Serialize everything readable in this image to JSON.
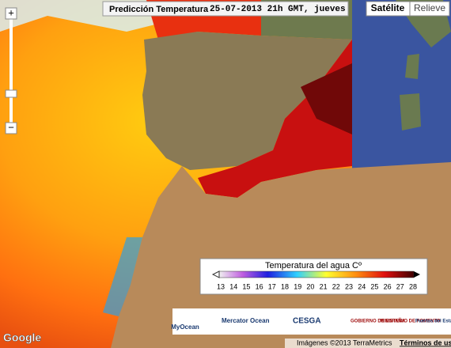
{
  "header": {
    "title": "Predicción Temperatura",
    "date": "25-07-2013 21h GMT, jueves"
  },
  "map_type": {
    "buttons": [
      "Satélite",
      "Relieve"
    ]
  },
  "zoom": {
    "in": "+",
    "out": "−"
  },
  "legend": {
    "title": "Temperatura del agua Cº",
    "ticks": [
      13,
      14,
      15,
      16,
      17,
      18,
      19,
      20,
      21,
      22,
      23,
      24,
      25,
      26,
      27,
      28
    ]
  },
  "logos": [
    "MyOcean",
    "Mercator Ocean",
    "CESGA",
    "GOBIERNO DE ESPAÑA",
    "MINISTERIO DE FOMENTO",
    "Puertos del Estado"
  ],
  "footer": {
    "brand": "Google",
    "credits": "Imágenes ©2013 TerraMetrics",
    "terms": "Términos de uso"
  }
}
